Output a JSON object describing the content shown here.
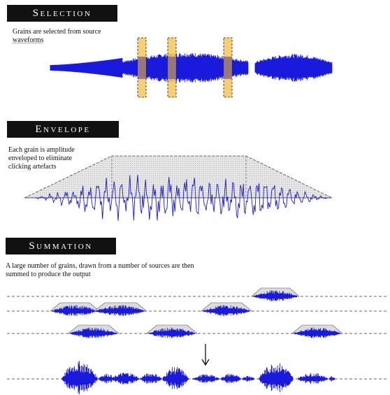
{
  "sections": {
    "selection": {
      "title": "Selection",
      "caption_line1": "Grains are selected from source",
      "caption_line2": "waveforms"
    },
    "envelope": {
      "title": "Envelope",
      "caption_line1": "Each grain is amplitude",
      "caption_line2": "enveloped to eliminate",
      "caption_line3": "clicking artefacts"
    },
    "summation": {
      "title": "Summation",
      "caption_line1": "A large number of grains, drawn from a number of sources are then",
      "caption_line2": "summed to produce the output"
    }
  },
  "colors": {
    "waveform": "#1a1adc",
    "banner_bg": "#111111",
    "grain_highlight": "#f5c65a",
    "envelope_fill": "#dcdcdc"
  },
  "icons": {
    "arrow": "down-arrow-icon"
  }
}
